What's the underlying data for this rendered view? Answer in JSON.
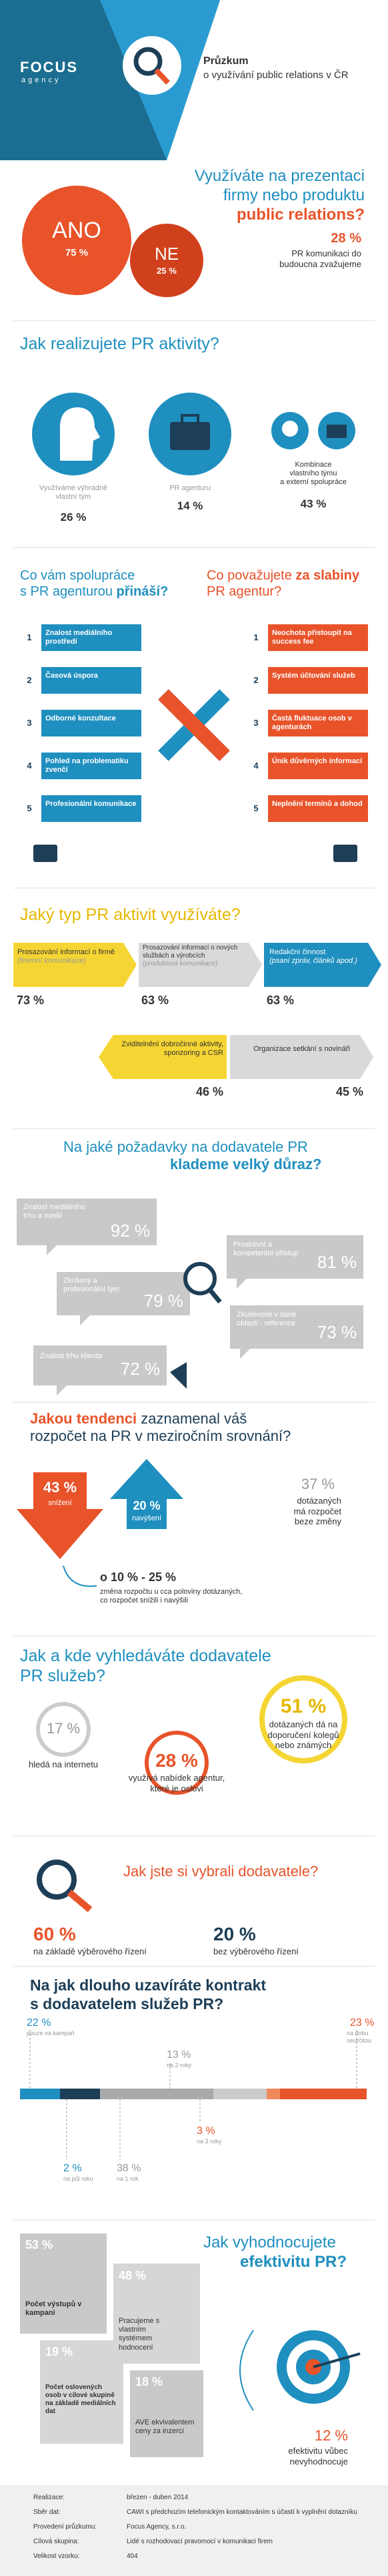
{
  "header": {
    "logo": "FOCUS",
    "logo_sub": "agency",
    "title": "Průzkum",
    "subtitle": "o využívání public relations v ČR"
  },
  "usage": {
    "question_a": "Využíváte na prezentaci",
    "question_b": "firmy nebo produktu",
    "question_c": "public relations?",
    "yes_label": "ANO",
    "yes_value": "75 %",
    "no_label": "NE",
    "no_value": "25 %",
    "consider_value": "28 %",
    "consider_text": "PR komunikaci do\nbudoucna zvažujeme"
  },
  "realization": {
    "title": "Jak realizujete PR aktivity?",
    "items": [
      {
        "label": "Využíváme výhradně\nvlastní tým",
        "value": "26 %"
      },
      {
        "label": "PR agenturu",
        "value": "14 %"
      },
      {
        "label": "Kombinace\nvlastního týmu\na externí spolupráce",
        "value": "43 %"
      }
    ]
  },
  "pros_cons": {
    "left_title_a": "Co vám spolupráce\ns PR agenturou ",
    "left_title_b": "přináší?",
    "right_title_a": "Co považujete ",
    "right_title_b": "za slabiny",
    "right_title_c": "\nPR agentur?",
    "left_items": [
      {
        "num": "1",
        "text": "Znalost mediálního prostředí"
      },
      {
        "num": "2",
        "text": "Časová úspora"
      },
      {
        "num": "3",
        "text": "Odborné konzultace"
      },
      {
        "num": "4",
        "text": "Pohled na problematiku zvenčí"
      },
      {
        "num": "5",
        "text": "Profesionální komunikace"
      }
    ],
    "right_items": [
      {
        "num": "1",
        "text": "Neochota přistoupit na success fee"
      },
      {
        "num": "2",
        "text": "Systém účtování služeb"
      },
      {
        "num": "3",
        "text": "Častá fluktuace osob v agenturách"
      },
      {
        "num": "4",
        "text": "Únik důvěrných informací"
      },
      {
        "num": "5",
        "text": "Neplnění termínů a dohod"
      }
    ]
  },
  "activities": {
    "title": "Jaký typ PR aktivit využíváte?",
    "items": [
      {
        "label": "Prosazování informací o firmě",
        "note": "(firemní komunikace)",
        "value": "73 %"
      },
      {
        "label": "Prosazování informací o nových službách a výrobcích",
        "note": "(produktová komunikace)",
        "value": "63 %"
      },
      {
        "label": "Redakční činnost",
        "note": "(psaní zpráv, článků apod.)",
        "value": "63 %"
      },
      {
        "label": "Zviditelnění dobročinné aktivity, sponzoring a CSR",
        "value": "46 %"
      },
      {
        "label": "Organizace setkání s novináři",
        "value": "45 %"
      }
    ]
  },
  "requirements": {
    "title_a": "Na jaké požadavky na dodavatele PR",
    "title_b": "klademe velký důraz?",
    "items": [
      {
        "label": "Znalost mediálního trhu a médií",
        "value": "92 %"
      },
      {
        "label": "Zkušený a profesionální tým",
        "value": "79 %"
      },
      {
        "label": "Znalost trhu klienta",
        "value": "72 %"
      },
      {
        "label": "Proaktivní a kompetentní přístup",
        "value": "81 %"
      },
      {
        "label": "Zkušenosti v dané oblasti - reference",
        "value": "73 %"
      }
    ]
  },
  "budget": {
    "title_a": "Jakou tendenci",
    "title_b": " zaznamenal váš\nrozpočet na PR v meziročním srovnání?",
    "decrease_value": "43 %",
    "decrease_label": "snížení",
    "increase_value": "20 %",
    "increase_label": "navýšení",
    "same_value": "37 %",
    "same_label": "dotázaných\nmá rozpočet\nbeze změny",
    "range": "o 10 % - 25 %",
    "range_text": "změna rozpočtu u cca poloviny dotázaných,\nco rozpočet snížili i navýšili"
  },
  "search": {
    "title": "Jak a kde vyhledáváte dodavatele\nPR služeb?",
    "internet_value": "17 %",
    "internet_label": "hledá na internetu",
    "recommend_value": "51 %",
    "recommend_label": "dotázaných dá na\ndoporučení kolegů\nnebo známých",
    "agency_value": "28 %",
    "agency_label": "využívá nabídek agentur,\nkteré je oslovi"
  },
  "selection": {
    "title": "Jak jste si vybrali dodavatele?",
    "tender_value": "60 %",
    "tender_label": "na základě výběrového řízení",
    "free_value": "20 %",
    "free_label": "bez výběrového řízení"
  },
  "contract": {
    "title": "Na jak dlouho uzavíráte kontrakt\ns dodavatelem služeb PR?",
    "items": [
      {
        "value": "22 %",
        "label": "pouze na kampaň"
      },
      {
        "value": "13 %",
        "label": "na 2 roky"
      },
      {
        "value": "23 %",
        "label": "na dobu neurčitou"
      },
      {
        "value": "3 %",
        "label": "na 3 roky"
      },
      {
        "value": "2 %",
        "label": "na půl roku"
      },
      {
        "value": "38 %",
        "label": "na 1 rok"
      }
    ]
  },
  "evaluation": {
    "title_a": "Jak vyhodnocujete",
    "title_b": "efektivitu PR?",
    "items": [
      {
        "value": "53 %",
        "label": "Počet výstupů v kampani"
      },
      {
        "value": "48 %",
        "label": "Pracujeme s vlastním systémem hodnocení"
      },
      {
        "value": "19 %",
        "label": "Počet oslovených osob v cílové skupině na základě mediálních dat"
      },
      {
        "value": "18 %",
        "label": "AVE ekvivalentem ceny za inzerci"
      }
    ],
    "none_value": "12 %",
    "none_label": "efektivitu vůbec\nnevyhodnocuje"
  },
  "footer": {
    "rows": [
      [
        "Realizace:",
        "březen - duben 2014"
      ],
      [
        "Sběr dat:",
        "CAWI s předchozím telefonickým kontaktováním s účastí k vyplnění dotazníku"
      ],
      [
        "Provedení průzkumu:",
        "Focus Agency, s.r.o."
      ],
      [
        "Cílová skupina:",
        "Lidé s rozhodovací pravomocí v komunikaci firem"
      ],
      [
        "Velikost vzorku:",
        "404"
      ]
    ]
  }
}
